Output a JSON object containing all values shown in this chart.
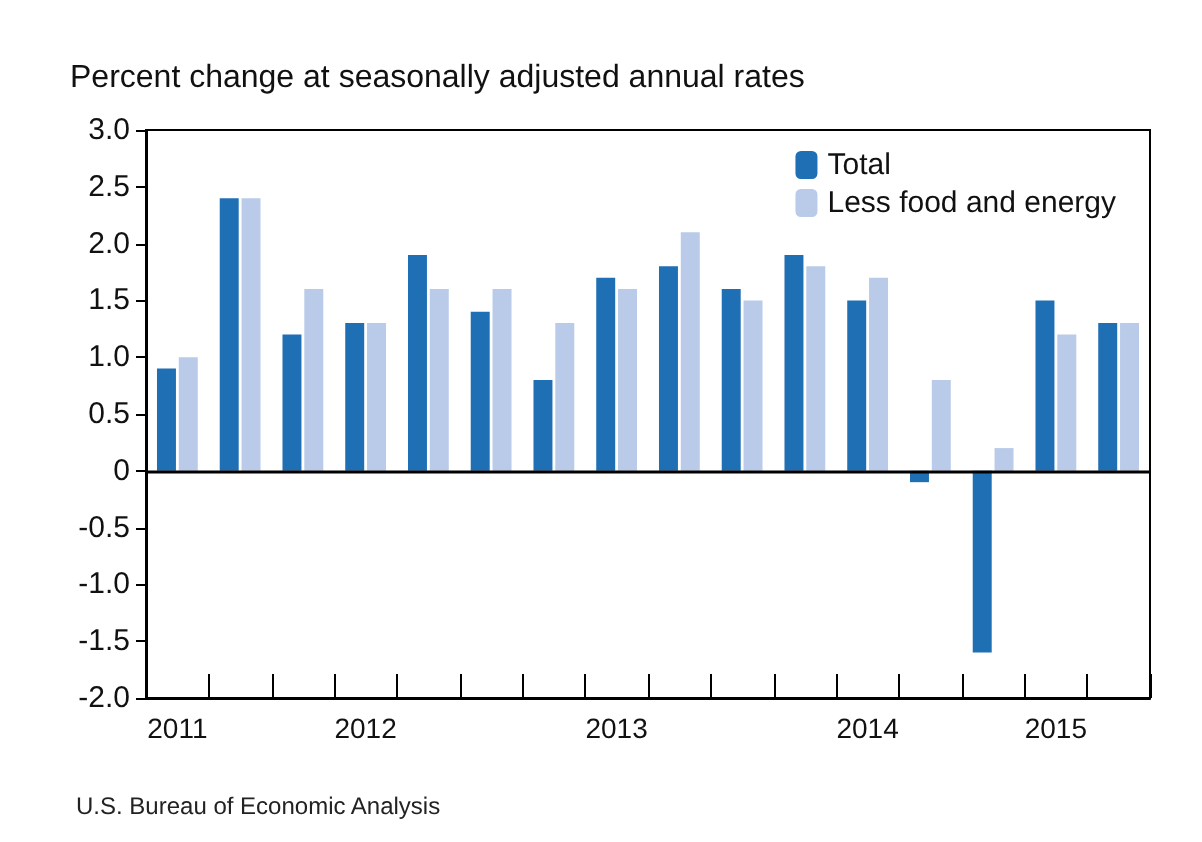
{
  "chart_data": {
    "type": "bar",
    "title": "Percent change at seasonally adjusted annual rates",
    "categories": [
      "2011",
      null,
      null,
      "2012",
      null,
      null,
      null,
      "2013",
      null,
      null,
      null,
      "2014",
      null,
      null,
      "2015",
      null
    ],
    "series": [
      {
        "name": "Total",
        "color": "#1f6fb5",
        "values": [
          0.9,
          2.4,
          1.2,
          1.3,
          1.9,
          1.4,
          0.8,
          1.7,
          1.8,
          1.6,
          1.9,
          1.5,
          -0.1,
          -1.6,
          1.5,
          1.3
        ]
      },
      {
        "name": "Less food and energy",
        "color": "#b9cbe9",
        "values": [
          1.0,
          2.4,
          1.6,
          1.3,
          1.6,
          1.6,
          1.3,
          1.6,
          2.1,
          1.5,
          1.8,
          1.7,
          0.8,
          0.2,
          1.2,
          1.3
        ]
      }
    ],
    "ylim": [
      -2,
      3
    ],
    "yticks": [
      {
        "value": 3,
        "label": "3.0"
      },
      2.5,
      {
        "value": 2,
        "label": "2.0"
      },
      1.5,
      {
        "value": 1,
        "label": "1.0"
      },
      0.5,
      0,
      -0.5,
      {
        "value": -1,
        "label": "-1.0"
      },
      -1.5,
      {
        "value": -2,
        "label": "-2.0"
      }
    ],
    "ref_lines": [
      {
        "axis": "y",
        "value": 0,
        "color": "#000000"
      }
    ],
    "grid": false,
    "legend": "top right",
    "annotations": [
      "U.S. Bureau of Economic Analysis"
    ]
  }
}
